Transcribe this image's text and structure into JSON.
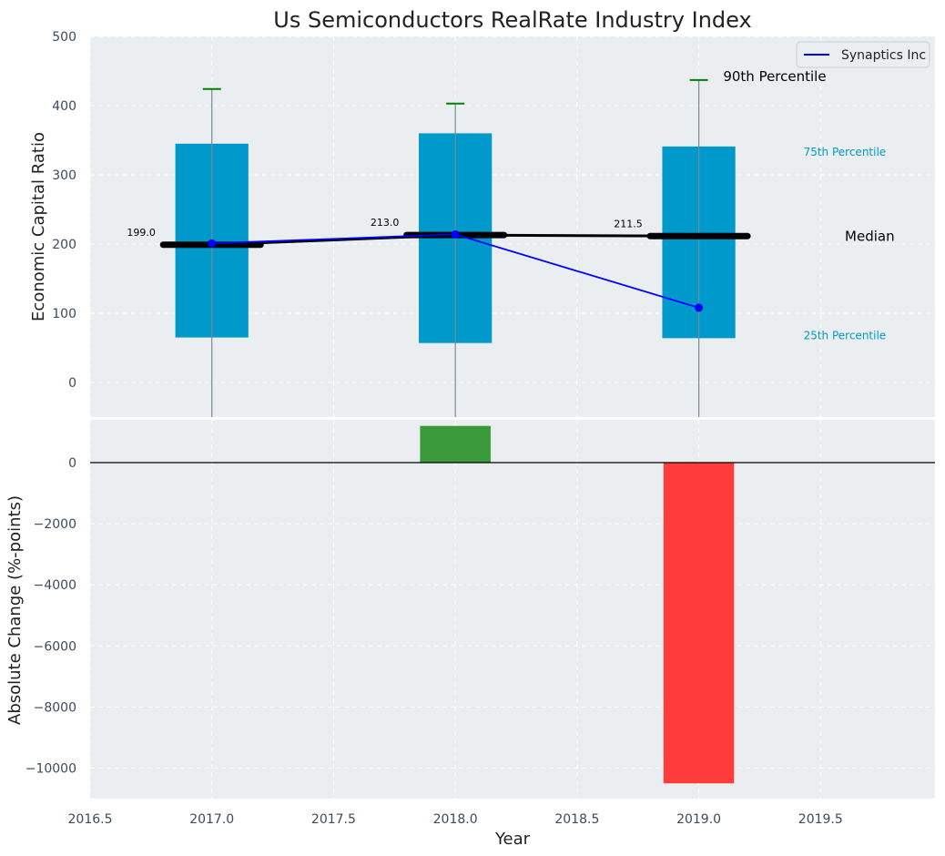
{
  "chart_data": [
    {
      "type": "box",
      "title": "Us Semiconductors RealRate Industry Index",
      "ylabel": "Economic Capital Ratio",
      "ylim": [
        -50,
        500
      ],
      "yticks": [
        0,
        100,
        200,
        300,
        400,
        500
      ],
      "grid": true,
      "legend": {
        "position": "top-right",
        "entries": [
          "Synaptics Inc"
        ]
      },
      "x": [
        2017.0,
        2018.0,
        2019.0
      ],
      "p10": [
        -50,
        -50,
        -50
      ],
      "p25": [
        65,
        57,
        64
      ],
      "median": [
        199.0,
        213.0,
        211.5
      ],
      "median_labels": [
        "199.0",
        "213.0",
        "211.5"
      ],
      "p75": [
        345,
        360,
        341
      ],
      "p90": [
        424,
        403,
        437
      ],
      "series": [
        {
          "name": "Synaptics Inc",
          "x": [
            2017.0,
            2018.0,
            2019.0
          ],
          "values": [
            201,
            214,
            108
          ],
          "color": "#0000ff"
        }
      ],
      "annotations": {
        "p90": "90th Percentile",
        "p75": "75th Percentile",
        "median": "Median",
        "p25": "25th Percentile"
      }
    },
    {
      "type": "bar",
      "xlabel": "Year",
      "ylabel": "Absolute Change (%-points)",
      "ylim": [
        -11000,
        1400
      ],
      "yticks": [
        0,
        -2000,
        -4000,
        -6000,
        -8000,
        -10000
      ],
      "xlim": [
        2016.5,
        2019.97
      ],
      "xticks": [
        2016.5,
        2017.0,
        2017.5,
        2018.0,
        2018.5,
        2019.0,
        2019.5
      ],
      "x": [
        2018.0,
        2019.0
      ],
      "values": [
        1200,
        -10500
      ],
      "colors": [
        "#3a9a3a",
        "#ff3c3c"
      ]
    }
  ]
}
